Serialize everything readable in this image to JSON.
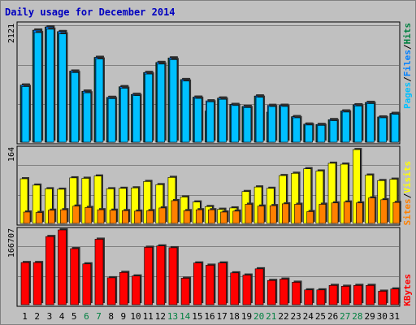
{
  "title": "Daily usage for December 2014",
  "colors": {
    "background": "#c0c0c0",
    "plot_background": "#c0c0c0",
    "grid": "#808080",
    "pages": "#00c0ff",
    "files": "#0080ff",
    "hits": "#008040",
    "sites": "#ff8000",
    "visits": "#ffff00",
    "kbytes": "#ff0000",
    "weekday_label": "#000000",
    "weekend_label": "#008040"
  },
  "chart_data": [
    {
      "type": "bar",
      "name": "hits-files-pages",
      "y_max_label": "2121",
      "ylim": [
        0,
        2121
      ],
      "side_label": {
        "pages": "Pages",
        "files": "Files",
        "hits": "Hits",
        "sep": "/"
      },
      "categories": [
        "1",
        "2",
        "3",
        "4",
        "5",
        "6",
        "7",
        "8",
        "9",
        "10",
        "11",
        "12",
        "13",
        "14",
        "15",
        "16",
        "17",
        "18",
        "19",
        "20",
        "21",
        "22",
        "23",
        "24",
        "25",
        "26",
        "27",
        "28",
        "29",
        "30",
        "31"
      ],
      "series": [
        {
          "name": "Hits",
          "values": [
            1035,
            2031,
            2090,
            2005,
            1289,
            924,
            1538,
            812,
            1005,
            866,
            1263,
            1445,
            1527,
            1135,
            816,
            565,
            799,
            684,
            648,
            837,
            545,
            668,
            462,
            327,
            320,
            408,
            565,
            678,
            721,
            457,
            521
          ]
        },
        {
          "name": "Files",
          "values": [
            1035,
            2031,
            2090,
            2005,
            1289,
            924,
            1538,
            812,
            1005,
            866,
            1263,
            1445,
            1527,
            1135,
            816,
            750,
            799,
            684,
            648,
            837,
            668,
            668,
            462,
            327,
            320,
            408,
            565,
            678,
            721,
            457,
            521
          ]
        },
        {
          "name": "Pages",
          "values": [
            1009,
            1987,
            2048,
            1963,
            1262,
            895,
            1508,
            790,
            978,
            845,
            1236,
            1416,
            1497,
            1108,
            794,
            732,
            778,
            665,
            628,
            815,
            646,
            648,
            442,
            311,
            305,
            390,
            546,
            656,
            700,
            442,
            506
          ]
        }
      ]
    },
    {
      "type": "bar",
      "name": "visits-sites",
      "y_max_label": "164",
      "ylim": [
        0,
        164
      ],
      "side_label": {
        "sites": "Sites",
        "visits": "Visits",
        "sep": "/"
      },
      "categories": [
        "1",
        "2",
        "3",
        "4",
        "5",
        "6",
        "7",
        "8",
        "9",
        "10",
        "11",
        "12",
        "13",
        "14",
        "15",
        "16",
        "17",
        "18",
        "19",
        "20",
        "21",
        "22",
        "23",
        "24",
        "25",
        "26",
        "27",
        "28",
        "29",
        "30",
        "31"
      ],
      "series": [
        {
          "name": "Visits",
          "values": [
            98,
            84,
            76,
            75,
            100,
            99,
            104,
            76,
            77,
            78,
            92,
            85,
            101,
            58,
            47,
            37,
            31,
            34,
            70,
            80,
            77,
            105,
            110,
            120,
            115,
            132,
            130,
            162,
            106,
            94,
            97
          ]
        },
        {
          "name": "Sites",
          "values": [
            25,
            24,
            29,
            30,
            38,
            35,
            30,
            29,
            28,
            27,
            28,
            34,
            50,
            28,
            30,
            30,
            25,
            27,
            42,
            38,
            39,
            43,
            42,
            26,
            42,
            45,
            47,
            45,
            56,
            52,
            46
          ]
        }
      ]
    },
    {
      "type": "bar",
      "name": "kbytes",
      "y_max_label": "166707",
      "ylim": [
        0,
        166707
      ],
      "side_label": {
        "kbytes": "KBytes"
      },
      "categories": [
        "1",
        "2",
        "3",
        "4",
        "5",
        "6",
        "7",
        "8",
        "9",
        "10",
        "11",
        "12",
        "13",
        "14",
        "15",
        "16",
        "17",
        "18",
        "19",
        "20",
        "21",
        "22",
        "23",
        "24",
        "25",
        "26",
        "27",
        "28",
        "29",
        "30",
        "31"
      ],
      "series": [
        {
          "name": "KBytes",
          "values": [
            94000,
            94000,
            152000,
            166700,
            125000,
            91000,
            146000,
            60000,
            72000,
            64000,
            128000,
            131000,
            127000,
            59000,
            93000,
            88000,
            93000,
            71000,
            66000,
            80000,
            54000,
            57000,
            50000,
            33000,
            33000,
            43000,
            41000,
            43000,
            43000,
            30000,
            35000
          ]
        }
      ]
    }
  ],
  "weekend_days": [
    6,
    7,
    13,
    14,
    20,
    21,
    27,
    28
  ]
}
